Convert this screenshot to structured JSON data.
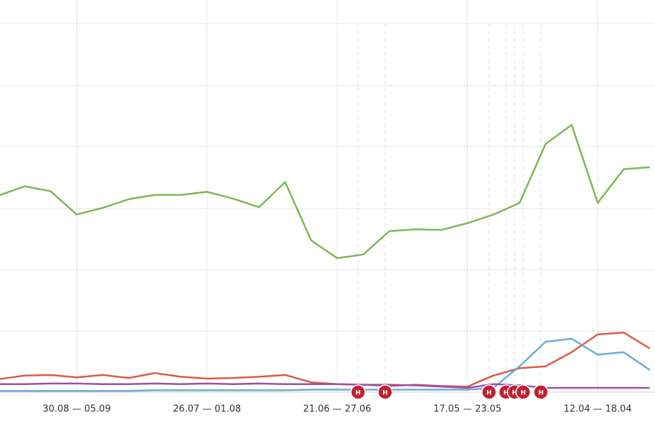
{
  "chart_data": {
    "type": "line",
    "categories": [
      null,
      null,
      null,
      "30.08 — 05.09",
      null,
      null,
      null,
      null,
      "26.07 — 01.08",
      null,
      null,
      null,
      null,
      "21.06 — 27.06",
      null,
      null,
      null,
      null,
      "17.05 — 23.05",
      null,
      null,
      null,
      null,
      "12.04 — 18.04",
      null,
      null
    ],
    "xlim": [
      0,
      25.2
    ],
    "ylim": [
      0,
      6
    ],
    "series": [
      {
        "color": "#7cb854",
        "values": [
          3.2,
          3.35,
          3.27,
          2.89,
          3.0,
          3.14,
          3.21,
          3.21,
          3.26,
          3.15,
          3.01,
          3.42,
          2.47,
          2.18,
          2.24,
          2.62,
          2.65,
          2.64,
          2.75,
          2.89,
          3.08,
          4.04,
          4.35,
          3.08,
          3.63,
          3.66
        ]
      },
      {
        "color": "#e05a44",
        "values": [
          0.21,
          0.27,
          0.28,
          0.24,
          0.28,
          0.23,
          0.31,
          0.25,
          0.22,
          0.23,
          0.25,
          0.28,
          0.16,
          0.13,
          0.12,
          0.1,
          0.12,
          0.1,
          0.09,
          0.27,
          0.39,
          0.42,
          0.65,
          0.94,
          0.97,
          0.71
        ]
      },
      {
        "color": "#6aaed6",
        "values": [
          0.02,
          0.02,
          0.02,
          0.02,
          0.02,
          0.02,
          0.03,
          0.03,
          0.03,
          0.03,
          0.03,
          0.03,
          0.04,
          0.04,
          0.04,
          0.04,
          0.04,
          0.04,
          0.04,
          0.07,
          0.42,
          0.82,
          0.87,
          0.61,
          0.65,
          0.36
        ]
      },
      {
        "color": "#9b4fb0",
        "values": [
          0.13,
          0.13,
          0.14,
          0.14,
          0.13,
          0.13,
          0.14,
          0.13,
          0.14,
          0.13,
          0.14,
          0.13,
          0.13,
          0.13,
          0.12,
          0.12,
          0.11,
          0.09,
          0.07,
          0.13,
          0.11,
          0.07,
          0.07,
          0.07,
          0.07,
          0.07
        ]
      }
    ],
    "annotations": [
      {
        "x": 13.8,
        "label": "H"
      },
      {
        "x": 14.84,
        "label": "H"
      },
      {
        "x": 18.83,
        "label": "H"
      },
      {
        "x": 19.48,
        "label": "H"
      },
      {
        "x": 19.81,
        "label": "H"
      },
      {
        "x": 20.14,
        "label": "H"
      },
      {
        "x": 20.82,
        "label": "H"
      }
    ],
    "grid": true
  }
}
